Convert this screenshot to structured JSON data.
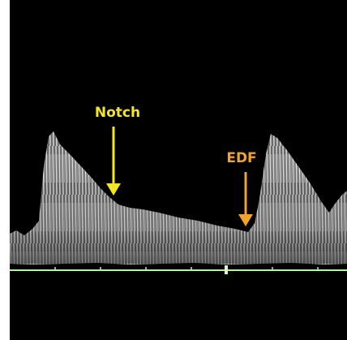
{
  "annotations": [
    {
      "label": "Notch"
    },
    {
      "label": "EDF"
    }
  ]
}
